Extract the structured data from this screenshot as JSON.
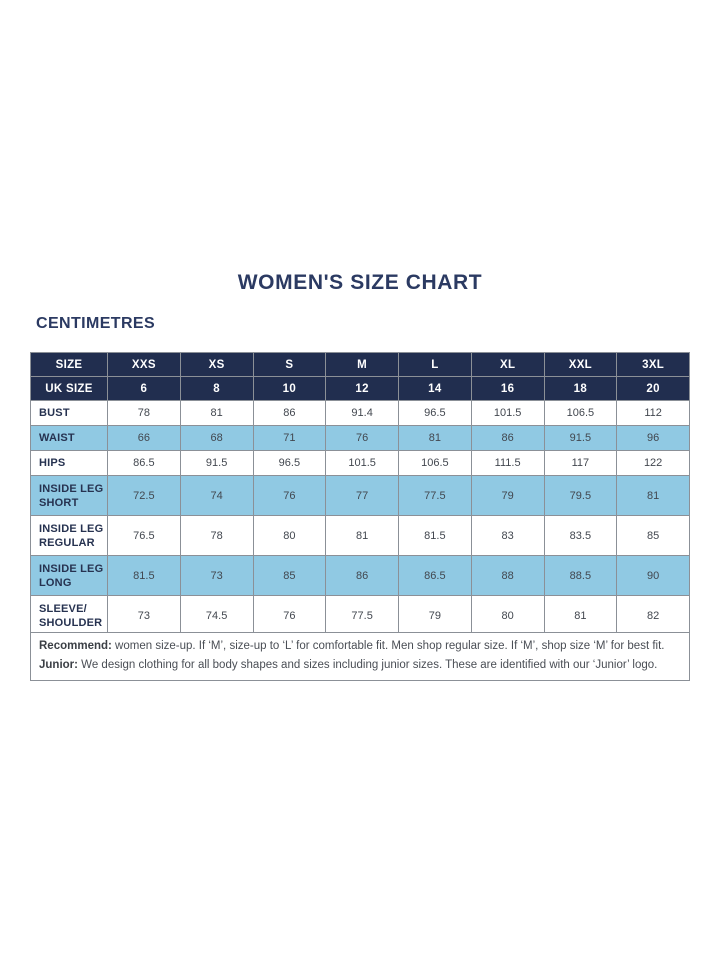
{
  "page": {
    "title": "WOMEN'S SIZE CHART",
    "subtitle": "CENTIMETRES"
  },
  "table": {
    "header_rows": [
      {
        "label": "SIZE",
        "values": [
          "XXS",
          "XS",
          "S",
          "M",
          "L",
          "XL",
          "XXL",
          "3XL"
        ]
      },
      {
        "label": "UK SIZE",
        "values": [
          "6",
          "8",
          "10",
          "12",
          "14",
          "16",
          "18",
          "20"
        ]
      }
    ],
    "rows": [
      {
        "label_lines": [
          "BUST"
        ],
        "values": [
          "78",
          "81",
          "86",
          "91.4",
          "96.5",
          "101.5",
          "106.5",
          "112"
        ],
        "shaded": false,
        "tall": false
      },
      {
        "label_lines": [
          "WAIST"
        ],
        "values": [
          "66",
          "68",
          "71",
          "76",
          "81",
          "86",
          "91.5",
          "96"
        ],
        "shaded": true,
        "tall": false
      },
      {
        "label_lines": [
          "HIPS"
        ],
        "values": [
          "86.5",
          "91.5",
          "96.5",
          "101.5",
          "106.5",
          "111.5",
          "117",
          "122"
        ],
        "shaded": false,
        "tall": false
      },
      {
        "label_lines": [
          "INSIDE LEG",
          "SHORT"
        ],
        "values": [
          "72.5",
          "74",
          "76",
          "77",
          "77.5",
          "79",
          "79.5",
          "81"
        ],
        "shaded": true,
        "tall": true
      },
      {
        "label_lines": [
          "INSIDE LEG",
          "REGULAR"
        ],
        "values": [
          "76.5",
          "78",
          "80",
          "81",
          "81.5",
          "83",
          "83.5",
          "85"
        ],
        "shaded": false,
        "tall": true
      },
      {
        "label_lines": [
          "INSIDE LEG",
          "LONG"
        ],
        "values": [
          "81.5",
          "73",
          "85",
          "86",
          "86.5",
          "88",
          "88.5",
          "90"
        ],
        "shaded": true,
        "tall": true
      },
      {
        "label_lines": [
          "SLEEVE/",
          "SHOULDER"
        ],
        "values": [
          "73",
          "74.5",
          "76",
          "77.5",
          "79",
          "80",
          "81",
          "82"
        ],
        "shaded": false,
        "tall": true
      }
    ]
  },
  "notes": {
    "recommend_label": "Recommend:",
    "recommend_text": " women size-up. If ‘M’, size-up to ‘L’ for comfortable fit. Men shop regular size. If ‘M’, shop size ‘M’ for best fit.",
    "junior_label": "Junior:",
    "junior_text": " We design clothing for all body shapes and sizes including junior sizes. These are identified with our ‘Junior’ logo."
  },
  "colors": {
    "navy_header": "#212e4f",
    "shaded_row_blue": "#90c9e3",
    "border_gray": "#8b9097",
    "title_navy": "#2b3a62",
    "body_text": "#42474f"
  }
}
